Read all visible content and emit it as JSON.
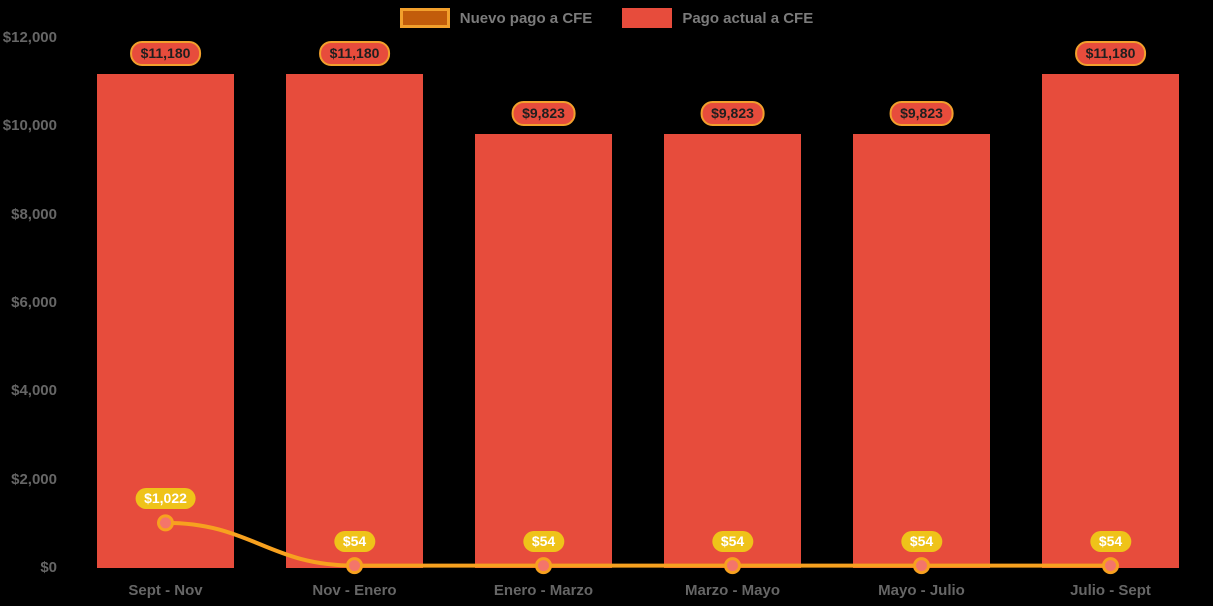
{
  "legend": {
    "items": [
      {
        "label": "Nuevo pago a CFE",
        "swatch_fill": "#c25c0b",
        "swatch_border": "#f2a02c"
      },
      {
        "label": "Pago actual a CFE",
        "swatch_fill": "#e74c3c",
        "swatch_border": "#e74c3c"
      }
    ]
  },
  "chart_data": {
    "type": "combo",
    "title": "",
    "xlabel": "",
    "ylabel": "",
    "categories": [
      "Sept - Nov",
      "Nov - Enero",
      "Enero - Marzo",
      "Marzo - Mayo",
      "Mayo - Julio",
      "Julio - Sept"
    ],
    "series": [
      {
        "name": "Nuevo pago a CFE",
        "type": "line",
        "color": "#f7a11f",
        "marker_fill": "#f4756a",
        "values": [
          1022,
          54,
          54,
          54,
          54,
          54
        ],
        "labels": [
          "$1,022",
          "$54",
          "$54",
          "$54",
          "$54",
          "$54"
        ],
        "label_bg": "#efc319",
        "label_text": "#ffffff"
      },
      {
        "name": "Pago actual a CFE",
        "type": "bar",
        "color": "#e74c3c",
        "values": [
          11180,
          11180,
          9823,
          9823,
          9823,
          11180
        ],
        "labels": [
          "$11,180",
          "$11,180",
          "$9,823",
          "$9,823",
          "$9,823",
          "$11,180"
        ],
        "label_bg": "#e74c3c",
        "label_border": "#f2a02c",
        "label_text": "#1f1f1f"
      }
    ],
    "yaxis": {
      "range": [
        0,
        12000
      ],
      "ticks": [
        {
          "value": 12000,
          "label": "$12,000"
        },
        {
          "value": 10000,
          "label": "$10,000"
        },
        {
          "value": 8000,
          "label": "$8,000"
        },
        {
          "value": 6000,
          "label": "$6,000"
        },
        {
          "value": 4000,
          "label": "$4,000"
        },
        {
          "value": 2000,
          "label": "$2,000"
        },
        {
          "value": 0,
          "label": "$0"
        }
      ]
    },
    "grid": false,
    "legend_position": "top-center",
    "background": "#000000",
    "axis_text_color": "#666666",
    "legend_text_color": "#7b7b7b"
  }
}
